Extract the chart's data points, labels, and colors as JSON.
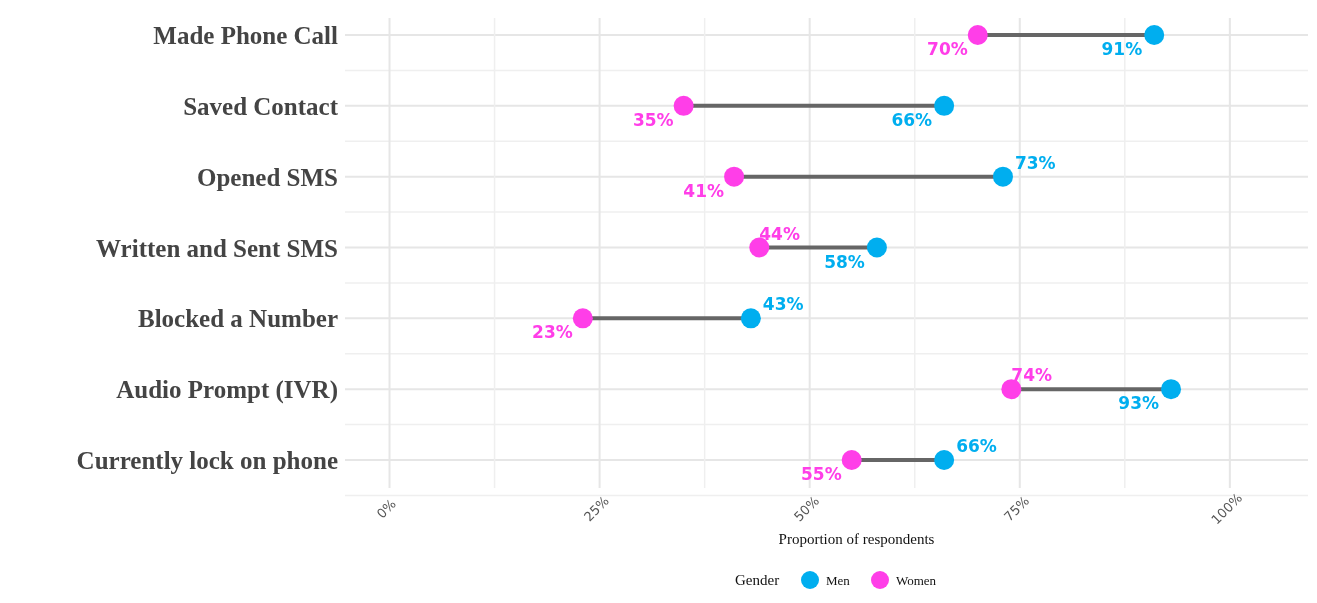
{
  "chart_data": {
    "type": "scatter",
    "orientation": "horizontal",
    "xlabel": "Proportion of respondents",
    "legend_title": "Gender",
    "legend": "bottom",
    "grid": true,
    "marker": "circle",
    "categories": [
      "Made Phone Call",
      "Saved Contact",
      "Opened SMS",
      "Written and Sent SMS",
      "Blocked a Number",
      "Audio Prompt (IVR)",
      "Currently lock on phone"
    ],
    "xlim": [
      -5.3,
      109.3
    ],
    "xticks": [
      {
        "value": 0,
        "label": "0%"
      },
      {
        "value": 12.5,
        "label": null
      },
      {
        "value": 25,
        "label": "25%"
      },
      {
        "value": 37.5,
        "label": null
      },
      {
        "value": 50,
        "label": "50%"
      },
      {
        "value": 62.5,
        "label": null
      },
      {
        "value": 75,
        "label": "75%"
      },
      {
        "value": 87.5,
        "label": null
      },
      {
        "value": 100,
        "label": "100%"
      }
    ],
    "series": [
      {
        "name": "Men",
        "color": "#00aeef",
        "values": [
          91,
          66,
          73,
          58,
          43,
          93,
          66
        ],
        "value_labels": [
          "91%",
          "66%",
          "73%",
          "58%",
          "43%",
          "93%",
          "66%"
        ]
      },
      {
        "name": "Women",
        "color": "#ff3ee8",
        "values": [
          70,
          35,
          41,
          44,
          23,
          74,
          55
        ],
        "value_labels": [
          "70%",
          "35%",
          "41%",
          "44%",
          "23%",
          "74%",
          "55%"
        ]
      }
    ]
  }
}
